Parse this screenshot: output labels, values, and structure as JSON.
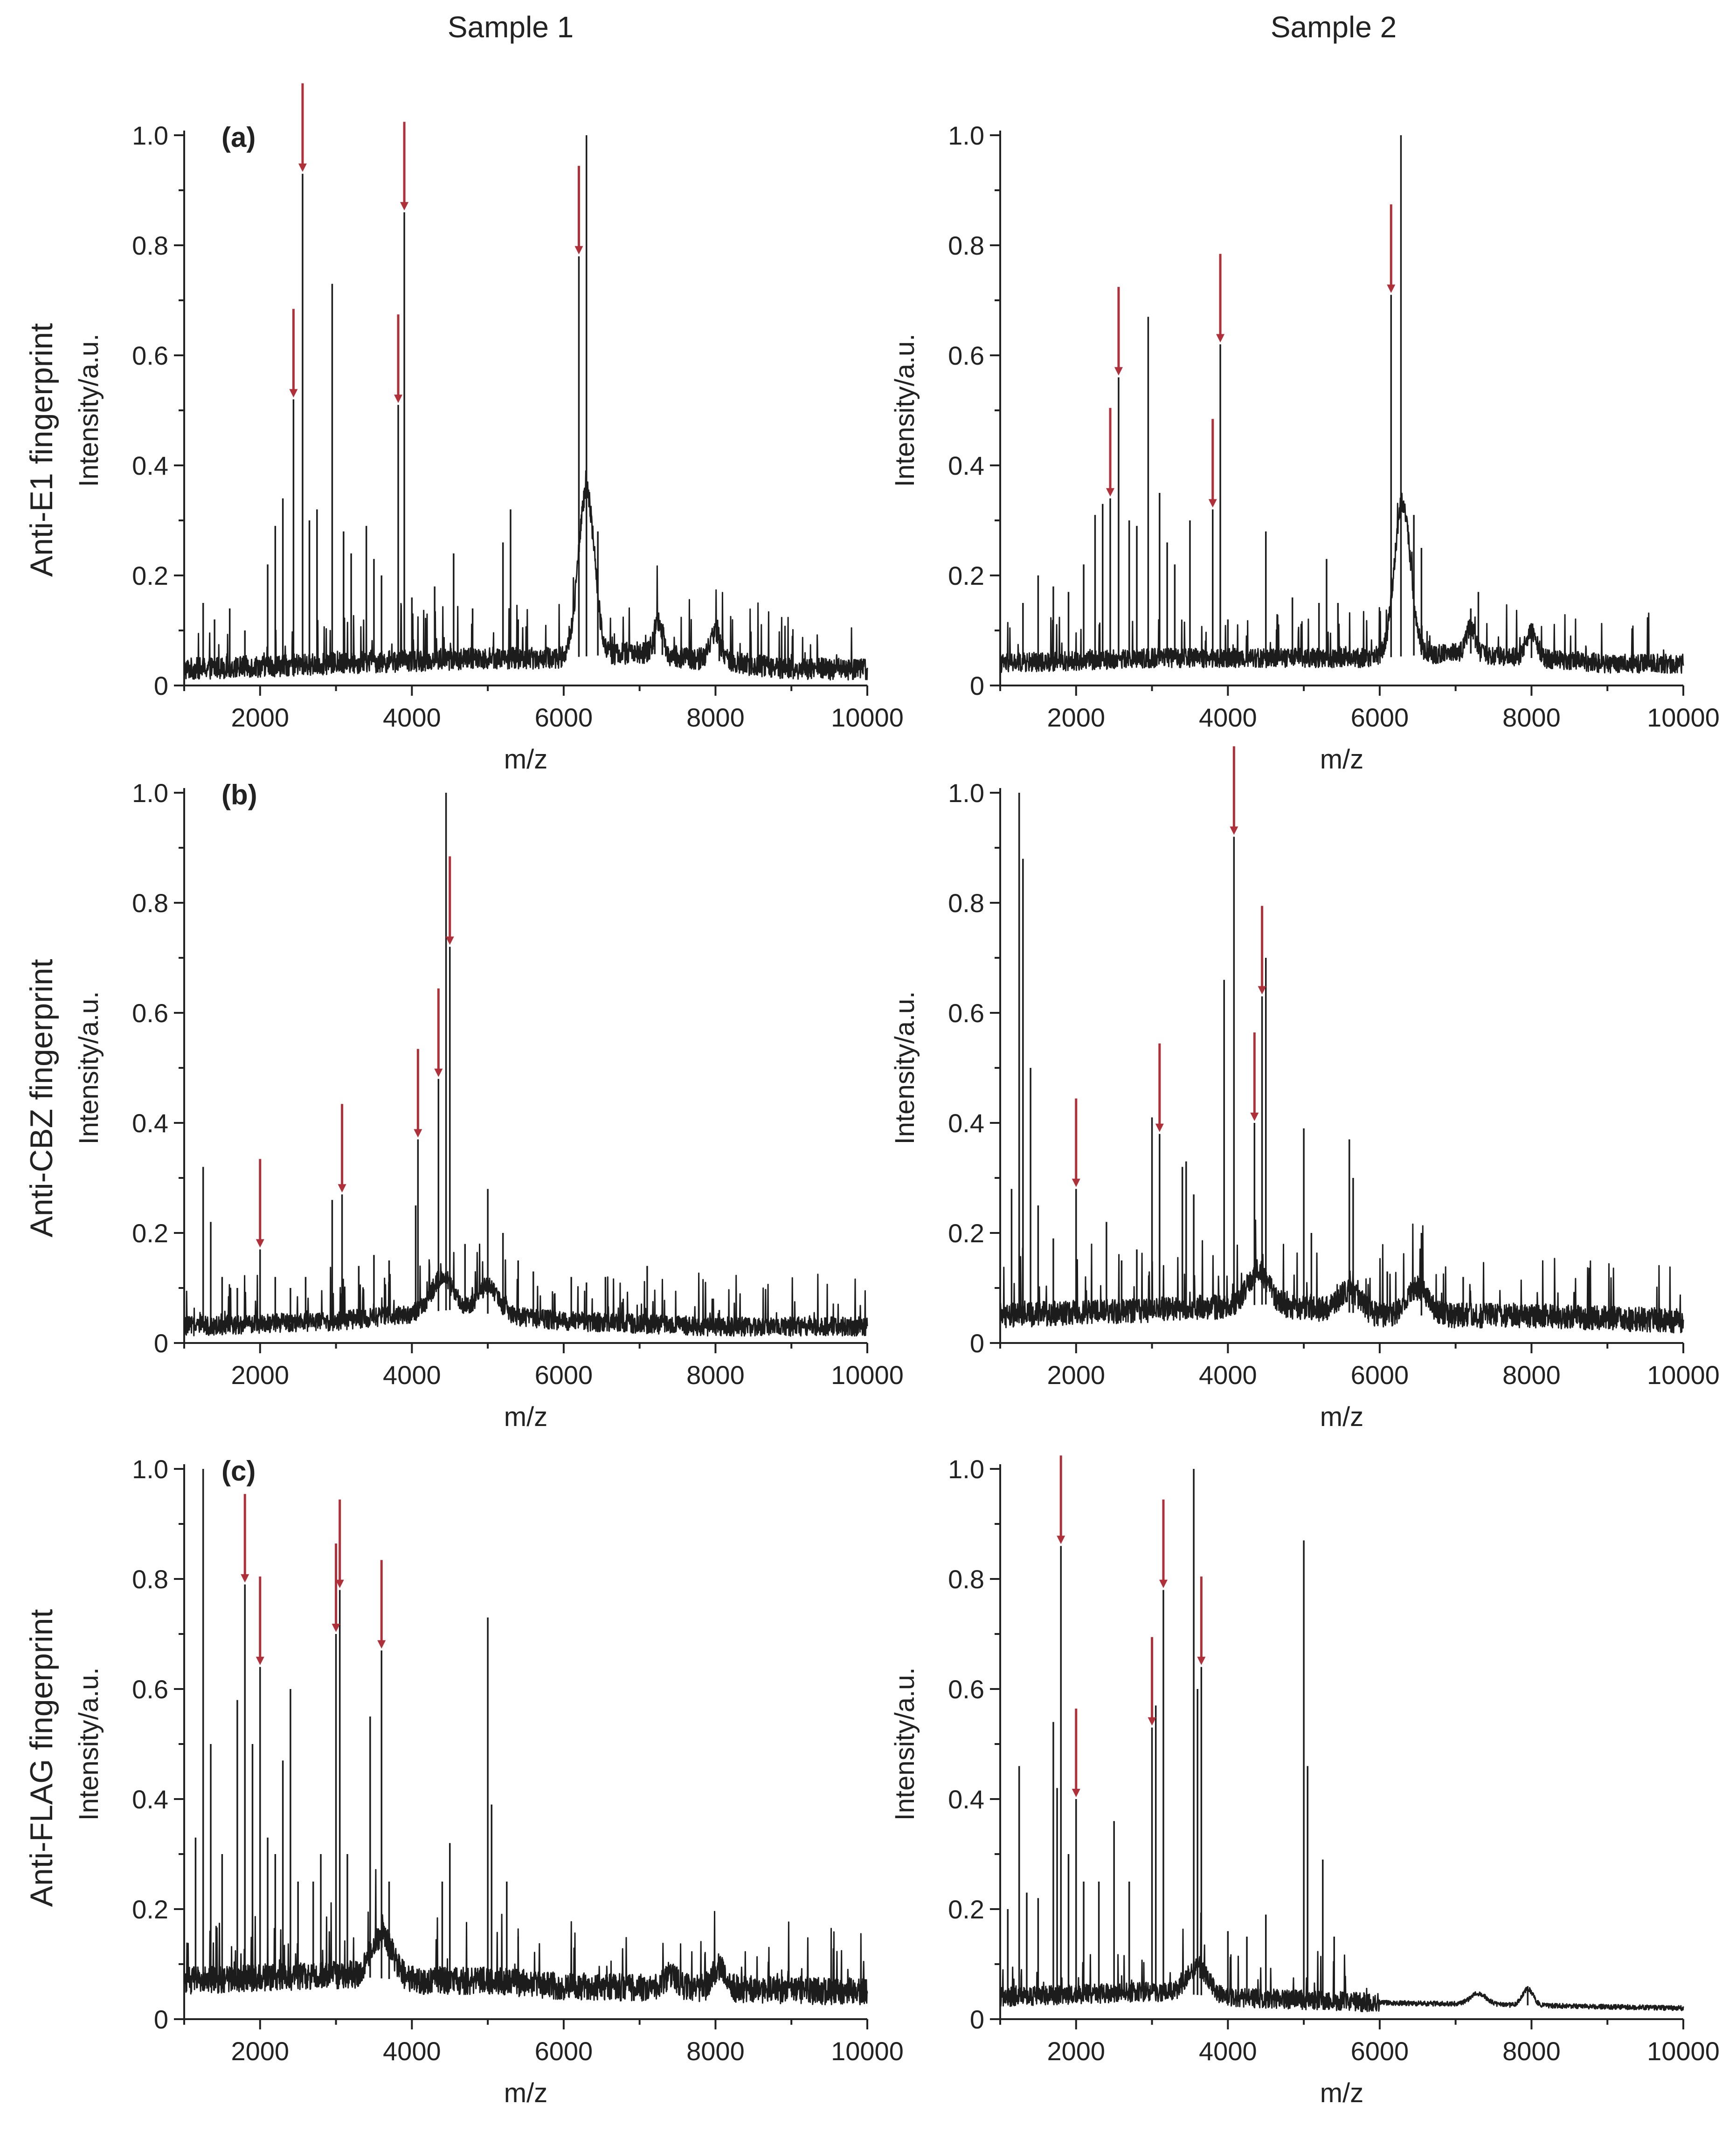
{
  "figure": {
    "columns": [
      "Sample 1",
      "Sample 2"
    ],
    "rows": [
      "Anti-E1 fingerprint",
      "Anti-CBZ fingerprint",
      "Anti-FLAG fingerprint"
    ],
    "colors": {
      "spectrum": "#1c1c1c",
      "arrow": "#b0303a",
      "axis": "#222222"
    }
  },
  "chart_data": [
    {
      "type": "line",
      "id": "E1-s1",
      "row": 0,
      "col": 0,
      "panel_label": "(a)",
      "title": "Sample 1",
      "xlabel": "m/z",
      "ylabel": "Intensity/a.u.",
      "xlim": [
        1000,
        10000
      ],
      "ylim": [
        0,
        1.0
      ],
      "xticks": [
        "2000",
        "4000",
        "6000",
        "8000",
        "10000"
      ],
      "yticks": [
        "0",
        "0.2",
        "0.4",
        "0.6",
        "0.8",
        "1.0"
      ],
      "baseline": [
        [
          1000,
          0.03
        ],
        [
          3000,
          0.04
        ],
        [
          5000,
          0.05
        ],
        [
          6000,
          0.05
        ],
        [
          7000,
          0.06
        ],
        [
          9000,
          0.03
        ],
        [
          10000,
          0.03
        ]
      ],
      "bumps": [
        [
          6300,
          0.3,
          150
        ],
        [
          7250,
          0.06,
          80
        ],
        [
          8000,
          0.05,
          100
        ]
      ],
      "noise": 0.04,
      "peaks": [
        [
          1250,
          0.15
        ],
        [
          1400,
          0.12
        ],
        [
          1600,
          0.14
        ],
        [
          1800,
          0.1
        ],
        [
          2100,
          0.22
        ],
        [
          2200,
          0.29
        ],
        [
          2300,
          0.34
        ],
        [
          2440,
          0.52
        ],
        [
          2560,
          0.93
        ],
        [
          2650,
          0.3
        ],
        [
          2750,
          0.32
        ],
        [
          2950,
          0.73
        ],
        [
          3100,
          0.28
        ],
        [
          3200,
          0.24
        ],
        [
          3400,
          0.29
        ],
        [
          3500,
          0.23
        ],
        [
          3600,
          0.2
        ],
        [
          3820,
          0.51
        ],
        [
          3900,
          0.86
        ],
        [
          4000,
          0.16
        ],
        [
          4300,
          0.18
        ],
        [
          4550,
          0.24
        ],
        [
          4800,
          0.14
        ],
        [
          5200,
          0.26
        ],
        [
          5300,
          0.32
        ],
        [
          5400,
          0.12
        ],
        [
          6200,
          0.78
        ],
        [
          6300,
          1.0
        ],
        [
          6450,
          0.28
        ],
        [
          7200,
          0.12
        ],
        [
          7300,
          0.11
        ],
        [
          8050,
          0.09
        ]
      ],
      "arrows": [
        [
          2440,
          0.52
        ],
        [
          2560,
          0.93
        ],
        [
          3820,
          0.51
        ],
        [
          3900,
          0.86
        ],
        [
          6200,
          0.78
        ]
      ]
    },
    {
      "type": "line",
      "id": "E1-s2",
      "row": 0,
      "col": 1,
      "panel_label": "",
      "title": "Sample 2",
      "xlabel": "m/z",
      "ylabel": "Intensity/a.u.",
      "xlim": [
        1000,
        10000
      ],
      "ylim": [
        0,
        1.0
      ],
      "xticks": [
        "2000",
        "4000",
        "6000",
        "8000",
        "10000"
      ],
      "yticks": [
        "0",
        "0.2",
        "0.4",
        "0.6",
        "0.8",
        "1.0"
      ],
      "baseline": [
        [
          1000,
          0.04
        ],
        [
          3000,
          0.05
        ],
        [
          5000,
          0.05
        ],
        [
          6000,
          0.05
        ],
        [
          7000,
          0.06
        ],
        [
          9000,
          0.04
        ],
        [
          10000,
          0.04
        ]
      ],
      "bumps": [
        [
          6300,
          0.28,
          150
        ],
        [
          7200,
          0.05,
          80
        ],
        [
          8000,
          0.05,
          100
        ]
      ],
      "noise": 0.035,
      "peaks": [
        [
          1300,
          0.15
        ],
        [
          1500,
          0.2
        ],
        [
          1700,
          0.18
        ],
        [
          1900,
          0.17
        ],
        [
          2100,
          0.22
        ],
        [
          2250,
          0.31
        ],
        [
          2350,
          0.33
        ],
        [
          2450,
          0.34
        ],
        [
          2560,
          0.56
        ],
        [
          2700,
          0.3
        ],
        [
          2800,
          0.29
        ],
        [
          2950,
          0.67
        ],
        [
          3100,
          0.35
        ],
        [
          3200,
          0.26
        ],
        [
          3300,
          0.22
        ],
        [
          3500,
          0.3
        ],
        [
          3800,
          0.32
        ],
        [
          3900,
          0.62
        ],
        [
          4000,
          0.12
        ],
        [
          4500,
          0.28
        ],
        [
          4850,
          0.16
        ],
        [
          5200,
          0.15
        ],
        [
          5300,
          0.23
        ],
        [
          5450,
          0.15
        ],
        [
          6150,
          0.71
        ],
        [
          6280,
          1.0
        ],
        [
          6450,
          0.31
        ],
        [
          6550,
          0.25
        ],
        [
          7200,
          0.14
        ],
        [
          7300,
          0.17
        ],
        [
          8000,
          0.1
        ]
      ],
      "arrows": [
        [
          2450,
          0.34
        ],
        [
          2560,
          0.56
        ],
        [
          3800,
          0.32
        ],
        [
          3900,
          0.62
        ],
        [
          6150,
          0.71
        ]
      ]
    },
    {
      "type": "line",
      "id": "CBZ-s1",
      "row": 1,
      "col": 0,
      "panel_label": "(b)",
      "title": "Sample 1",
      "xlabel": "m/z",
      "ylabel": "Intensity/a.u.",
      "xlim": [
        1000,
        10000
      ],
      "ylim": [
        0,
        1.0
      ],
      "xticks": [
        "2000",
        "4000",
        "6000",
        "8000",
        "10000"
      ],
      "yticks": [
        "0",
        "0.2",
        "0.4",
        "0.6",
        "0.8",
        "1.0"
      ],
      "baseline": [
        [
          1000,
          0.03
        ],
        [
          3000,
          0.04
        ],
        [
          4500,
          0.06
        ],
        [
          6000,
          0.04
        ],
        [
          8000,
          0.03
        ],
        [
          10000,
          0.03
        ]
      ],
      "bumps": [
        [
          4400,
          0.06,
          200
        ],
        [
          5000,
          0.05,
          200
        ]
      ],
      "noise": 0.035,
      "peaks": [
        [
          1250,
          0.32
        ],
        [
          1350,
          0.22
        ],
        [
          1500,
          0.12
        ],
        [
          1700,
          0.1
        ],
        [
          2000,
          0.17
        ],
        [
          2200,
          0.12
        ],
        [
          2400,
          0.1
        ],
        [
          2600,
          0.12
        ],
        [
          2950,
          0.26
        ],
        [
          3080,
          0.27
        ],
        [
          3300,
          0.14
        ],
        [
          3500,
          0.16
        ],
        [
          3700,
          0.15
        ],
        [
          4050,
          0.25
        ],
        [
          4080,
          0.37
        ],
        [
          4350,
          0.48
        ],
        [
          4450,
          1.0
        ],
        [
          4500,
          0.72
        ],
        [
          4700,
          0.18
        ],
        [
          5000,
          0.28
        ],
        [
          5200,
          0.2
        ],
        [
          5400,
          0.15
        ],
        [
          5600,
          0.13
        ],
        [
          6100,
          0.12
        ],
        [
          6300,
          0.11
        ],
        [
          6550,
          0.12
        ],
        [
          7100,
          0.14
        ],
        [
          8050,
          0.06
        ]
      ],
      "arrows": [
        [
          2000,
          0.17
        ],
        [
          3080,
          0.27
        ],
        [
          4080,
          0.37
        ],
        [
          4350,
          0.48
        ],
        [
          4500,
          0.72
        ]
      ]
    },
    {
      "type": "line",
      "id": "CBZ-s2",
      "row": 1,
      "col": 1,
      "panel_label": "",
      "title": "Sample 2",
      "xlabel": "m/z",
      "ylabel": "Intensity/a.u.",
      "xlim": [
        1000,
        10000
      ],
      "ylim": [
        0,
        1.0
      ],
      "xticks": [
        "2000",
        "4000",
        "6000",
        "8000",
        "10000"
      ],
      "yticks": [
        "0",
        "0.2",
        "0.4",
        "0.6",
        "0.8",
        "1.0"
      ],
      "baseline": [
        [
          1000,
          0.05
        ],
        [
          3000,
          0.06
        ],
        [
          4500,
          0.07
        ],
        [
          6000,
          0.05
        ],
        [
          8000,
          0.05
        ],
        [
          10000,
          0.04
        ]
      ],
      "bumps": [
        [
          4400,
          0.06,
          200
        ],
        [
          5600,
          0.04,
          200
        ],
        [
          6500,
          0.05,
          200
        ]
      ],
      "noise": 0.045,
      "peaks": [
        [
          1150,
          0.28
        ],
        [
          1250,
          1.0
        ],
        [
          1300,
          0.88
        ],
        [
          1400,
          0.5
        ],
        [
          1500,
          0.25
        ],
        [
          1700,
          0.19
        ],
        [
          2000,
          0.28
        ],
        [
          2400,
          0.22
        ],
        [
          2600,
          0.15
        ],
        [
          2800,
          0.17
        ],
        [
          3000,
          0.41
        ],
        [
          3100,
          0.38
        ],
        [
          3400,
          0.32
        ],
        [
          3450,
          0.33
        ],
        [
          3550,
          0.27
        ],
        [
          3950,
          0.66
        ],
        [
          4080,
          0.92
        ],
        [
          4350,
          0.4
        ],
        [
          4450,
          0.63
        ],
        [
          4500,
          0.7
        ],
        [
          5000,
          0.39
        ],
        [
          5100,
          0.2
        ],
        [
          5600,
          0.37
        ],
        [
          5650,
          0.3
        ],
        [
          6100,
          0.13
        ],
        [
          6550,
          0.2
        ],
        [
          7100,
          0.12
        ],
        [
          8000,
          0.07
        ]
      ],
      "arrows": [
        [
          2000,
          0.28
        ],
        [
          3100,
          0.38
        ],
        [
          4080,
          0.92
        ],
        [
          4350,
          0.4
        ],
        [
          4450,
          0.63
        ]
      ]
    },
    {
      "type": "line",
      "id": "FLAG-s1",
      "row": 2,
      "col": 0,
      "panel_label": "(c)",
      "title": "Sample 1",
      "xlabel": "m/z",
      "ylabel": "Intensity/a.u.",
      "xlim": [
        1000,
        10000
      ],
      "ylim": [
        0,
        1.0
      ],
      "xticks": [
        "2000",
        "4000",
        "6000",
        "8000",
        "10000"
      ],
      "yticks": [
        "0",
        "0.2",
        "0.4",
        "0.6",
        "0.8",
        "1.0"
      ],
      "baseline": [
        [
          1000,
          0.07
        ],
        [
          3000,
          0.08
        ],
        [
          4000,
          0.07
        ],
        [
          5000,
          0.07
        ],
        [
          6000,
          0.06
        ],
        [
          10000,
          0.05
        ]
      ],
      "bumps": [
        [
          3600,
          0.08,
          200
        ],
        [
          7400,
          0.02,
          150
        ],
        [
          8050,
          0.04,
          120
        ]
      ],
      "noise": 0.05,
      "peaks": [
        [
          1150,
          0.33
        ],
        [
          1250,
          1.0
        ],
        [
          1350,
          0.5
        ],
        [
          1500,
          0.3
        ],
        [
          1700,
          0.58
        ],
        [
          1800,
          0.79
        ],
        [
          1900,
          0.5
        ],
        [
          2000,
          0.64
        ],
        [
          2100,
          0.33
        ],
        [
          2200,
          0.3
        ],
        [
          2300,
          0.47
        ],
        [
          2400,
          0.6
        ],
        [
          2500,
          0.25
        ],
        [
          2700,
          0.25
        ],
        [
          2800,
          0.3
        ],
        [
          3000,
          0.7
        ],
        [
          3050,
          0.78
        ],
        [
          3150,
          0.3
        ],
        [
          3450,
          0.55
        ],
        [
          3600,
          0.67
        ],
        [
          3700,
          0.25
        ],
        [
          4400,
          0.25
        ],
        [
          4500,
          0.32
        ],
        [
          5000,
          0.73
        ],
        [
          5050,
          0.39
        ],
        [
          5250,
          0.25
        ],
        [
          5400,
          0.15
        ]
      ],
      "arrows": [
        [
          1800,
          0.79
        ],
        [
          2000,
          0.64
        ],
        [
          3000,
          0.7
        ],
        [
          3050,
          0.78
        ],
        [
          3600,
          0.67
        ]
      ]
    },
    {
      "type": "line",
      "id": "FLAG-s2",
      "row": 2,
      "col": 1,
      "panel_label": "",
      "title": "Sample 2",
      "xlabel": "m/z",
      "ylabel": "Intensity/a.u.",
      "xlim": [
        1000,
        10000
      ],
      "ylim": [
        0,
        1.0
      ],
      "xticks": [
        "2000",
        "4000",
        "6000",
        "8000",
        "10000"
      ],
      "yticks": [
        "0",
        "0.2",
        "0.4",
        "0.6",
        "0.8",
        "1.0"
      ],
      "baseline": [
        [
          1000,
          0.04
        ],
        [
          3000,
          0.05
        ],
        [
          4000,
          0.04
        ],
        [
          6000,
          0.03
        ],
        [
          10000,
          0.02
        ]
      ],
      "bumps": [
        [
          3600,
          0.05,
          200
        ],
        [
          7300,
          0.02,
          150
        ],
        [
          7950,
          0.03,
          100
        ]
      ],
      "noise": 0.035,
      "noise_end": 6000,
      "peaks": [
        [
          1100,
          0.2
        ],
        [
          1250,
          0.46
        ],
        [
          1350,
          0.23
        ],
        [
          1500,
          0.22
        ],
        [
          1700,
          0.54
        ],
        [
          1750,
          0.42
        ],
        [
          1800,
          0.86
        ],
        [
          1900,
          0.3
        ],
        [
          2000,
          0.4
        ],
        [
          2100,
          0.25
        ],
        [
          2300,
          0.25
        ],
        [
          2500,
          0.36
        ],
        [
          2700,
          0.25
        ],
        [
          3000,
          0.53
        ],
        [
          3050,
          0.57
        ],
        [
          3150,
          0.78
        ],
        [
          3550,
          1.0
        ],
        [
          3600,
          0.6
        ],
        [
          3650,
          0.64
        ],
        [
          4000,
          0.16
        ],
        [
          4250,
          0.15
        ],
        [
          4500,
          0.19
        ],
        [
          5000,
          0.87
        ],
        [
          5050,
          0.46
        ],
        [
          5250,
          0.29
        ],
        [
          5400,
          0.15
        ],
        [
          7950,
          0.06
        ]
      ],
      "arrows": [
        [
          1800,
          0.86
        ],
        [
          2000,
          0.4
        ],
        [
          3000,
          0.53
        ],
        [
          3150,
          0.78
        ],
        [
          3650,
          0.64
        ]
      ]
    }
  ]
}
